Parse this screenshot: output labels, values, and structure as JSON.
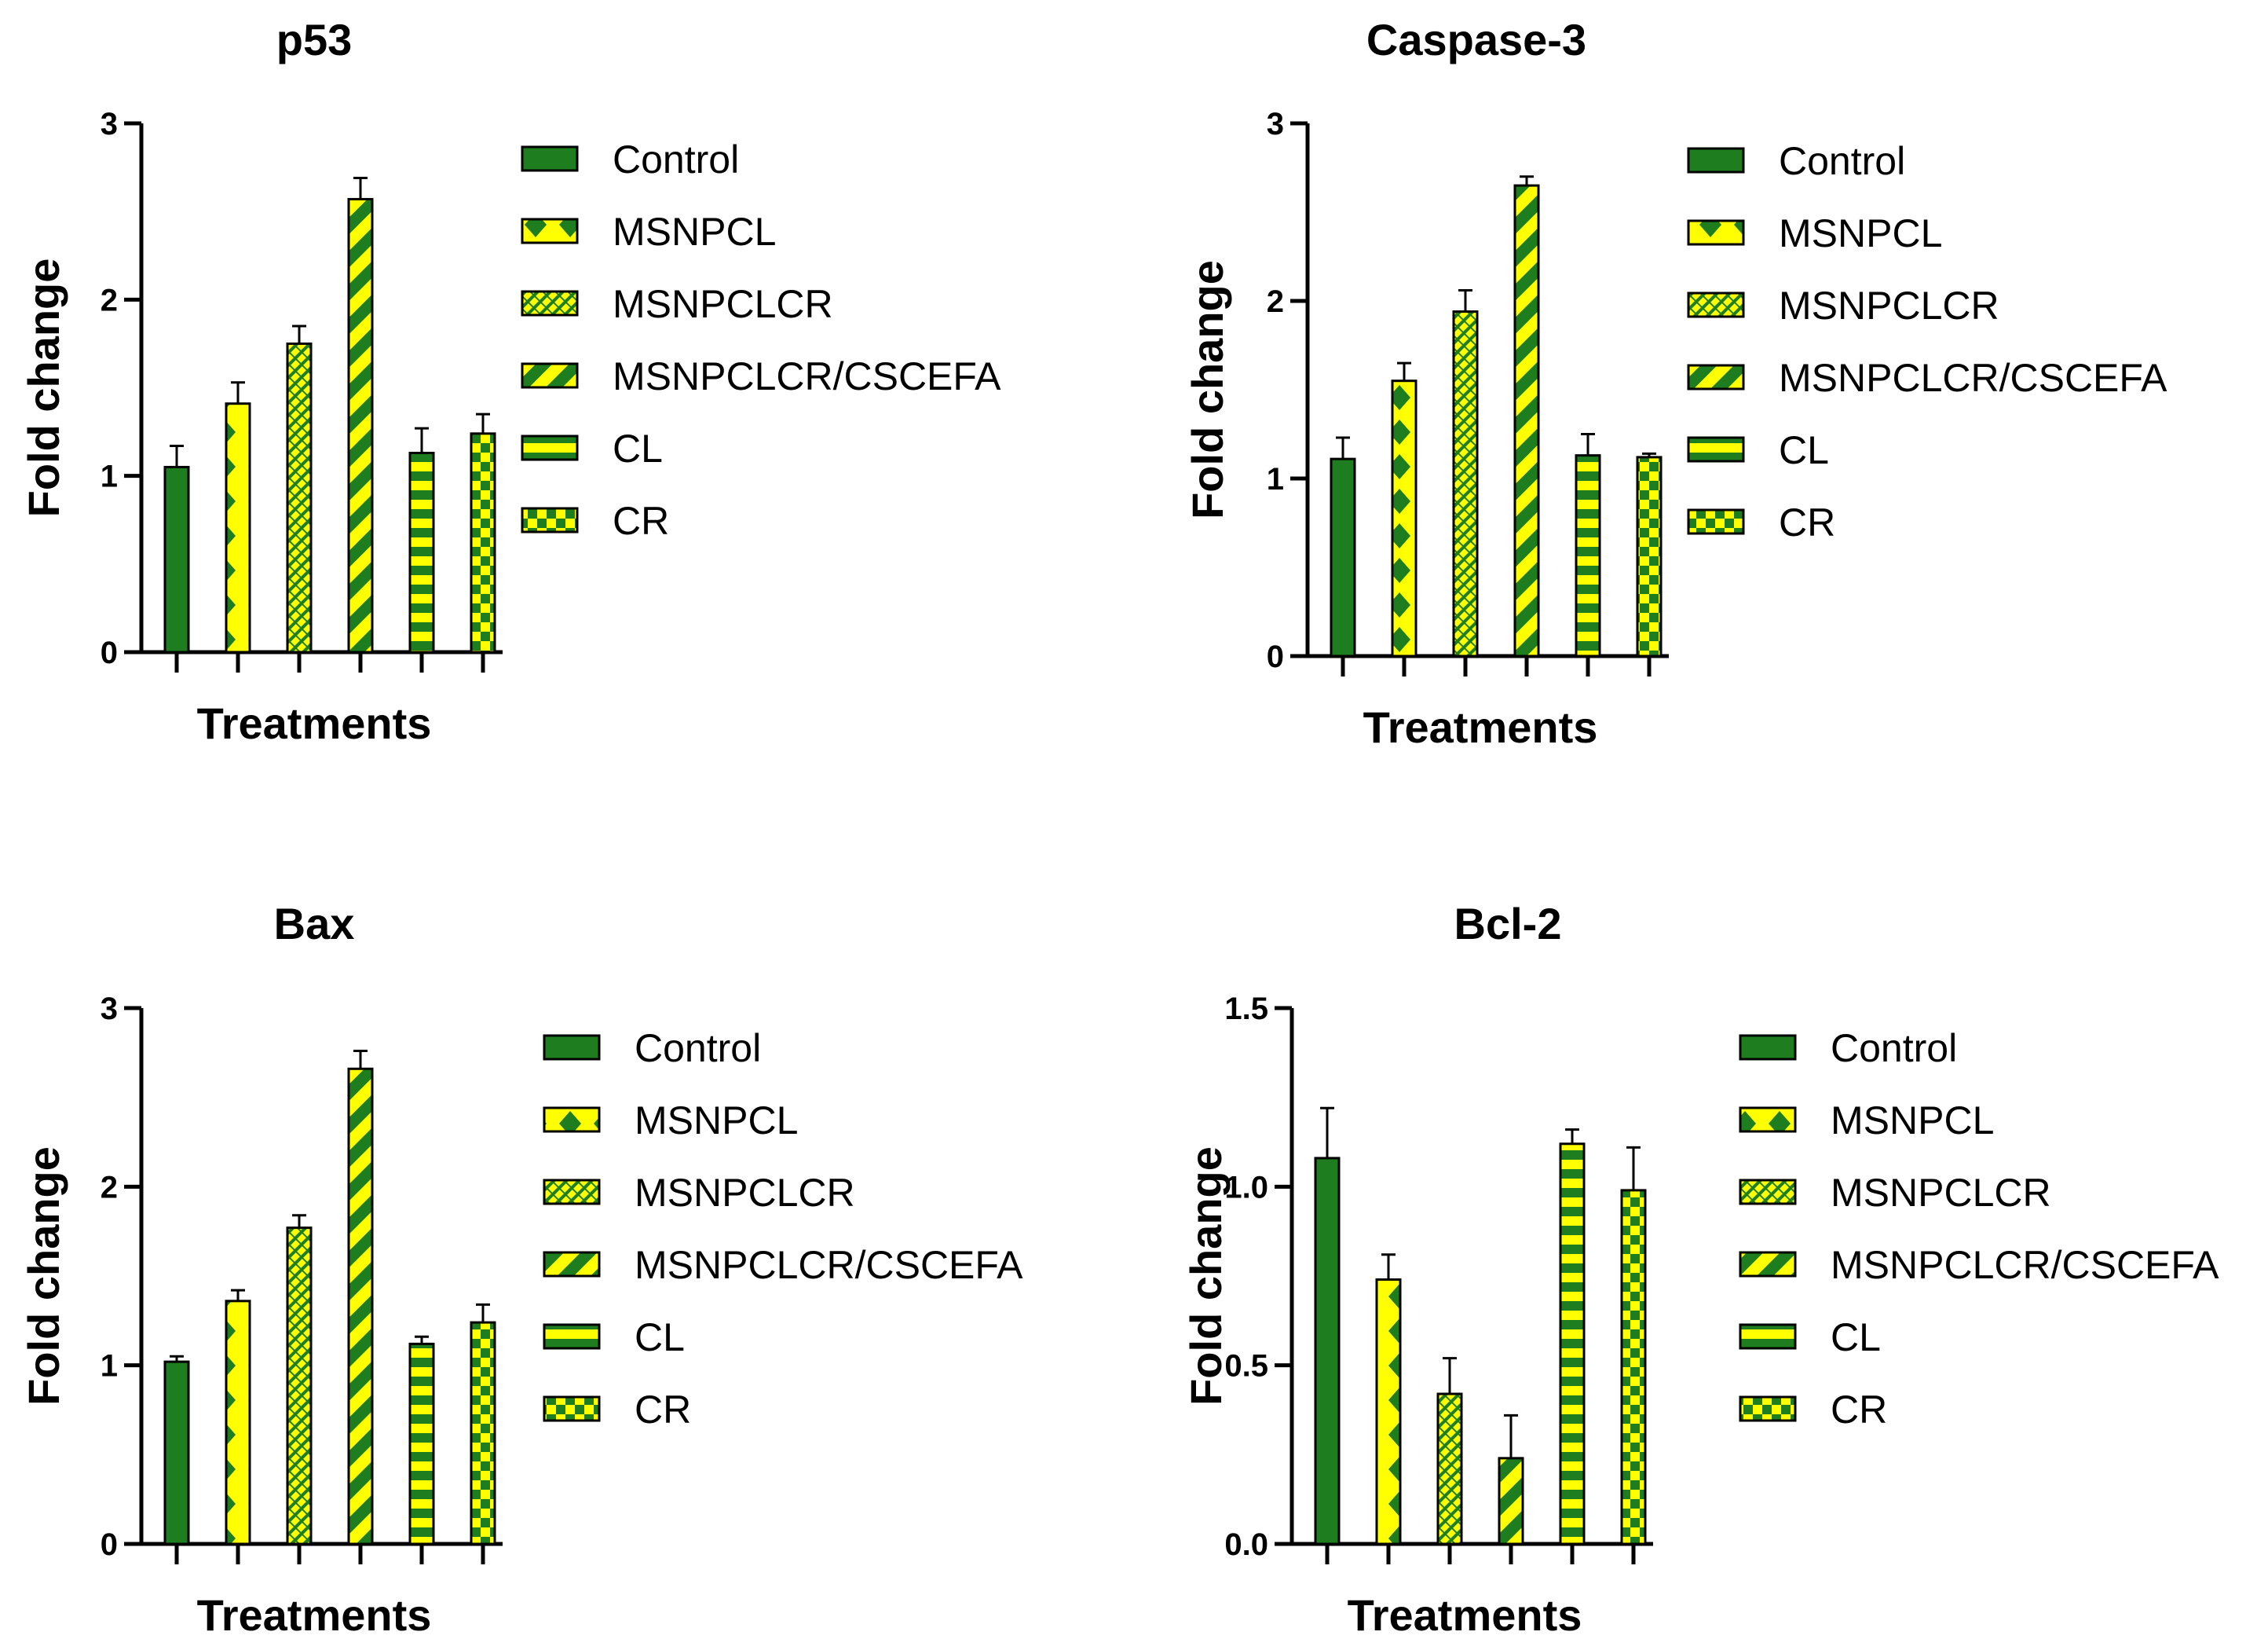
{
  "colors": {
    "dark_green": "#1e7d1e",
    "yellow": "#ffff00",
    "axis": "#000000"
  },
  "chart_data": [
    {
      "type": "bar",
      "title": "p53",
      "xlabel": "Treatments",
      "ylabel": "Fold change",
      "ylim": [
        0,
        3
      ],
      "yticks": [
        "0",
        "1",
        "2",
        "3"
      ],
      "categories": [
        "Control",
        "MSNPCL",
        "MSNPCLCR",
        "MSNPCLCR/CSCEFA",
        "CL",
        "CR"
      ],
      "values": [
        1.05,
        1.41,
        1.75,
        2.57,
        1.13,
        1.24
      ],
      "errors": [
        0.12,
        0.12,
        0.1,
        0.12,
        0.14,
        0.11
      ],
      "legend": "right"
    },
    {
      "type": "bar",
      "title": "Caspase-3",
      "xlabel": "Treatments",
      "ylabel": "Fold change",
      "ylim": [
        0,
        3
      ],
      "yticks": [
        "0",
        "1",
        "2",
        "3"
      ],
      "categories": [
        "Control",
        "MSNPCL",
        "MSNPCLCR",
        "MSNPCLCR/CSCEFA",
        "CL",
        "CR"
      ],
      "values": [
        1.11,
        1.55,
        1.94,
        2.65,
        1.13,
        1.12
      ],
      "errors": [
        0.12,
        0.1,
        0.12,
        0.05,
        0.12,
        0.02
      ],
      "legend": "right"
    },
    {
      "type": "bar",
      "title": "Bax",
      "xlabel": "Treatments",
      "ylabel": "Fold change",
      "ylim": [
        0,
        3
      ],
      "yticks": [
        "0",
        "1",
        "2",
        "3"
      ],
      "categories": [
        "Control",
        "MSNPCL",
        "MSNPCLCR",
        "MSNPCLCR/CSCEFA",
        "CL",
        "CR"
      ],
      "values": [
        1.02,
        1.36,
        1.77,
        2.66,
        1.12,
        1.24
      ],
      "errors": [
        0.03,
        0.06,
        0.07,
        0.1,
        0.04,
        0.1
      ],
      "legend": "right"
    },
    {
      "type": "bar",
      "title": "Bcl-2",
      "xlabel": "Treatments",
      "ylabel": "Fold change",
      "ylim": [
        0,
        1.5
      ],
      "yticks": [
        "0.0",
        "0.5",
        "1.0",
        "1.5"
      ],
      "categories": [
        "Control",
        "MSNPCL",
        "MSNPCLCR",
        "MSNPCLCR/CSCEFA",
        "CL",
        "CR"
      ],
      "values": [
        1.08,
        0.74,
        0.42,
        0.24,
        1.12,
        0.99
      ],
      "errors": [
        0.14,
        0.07,
        0.1,
        0.12,
        0.04,
        0.12
      ],
      "legend": "right"
    }
  ]
}
